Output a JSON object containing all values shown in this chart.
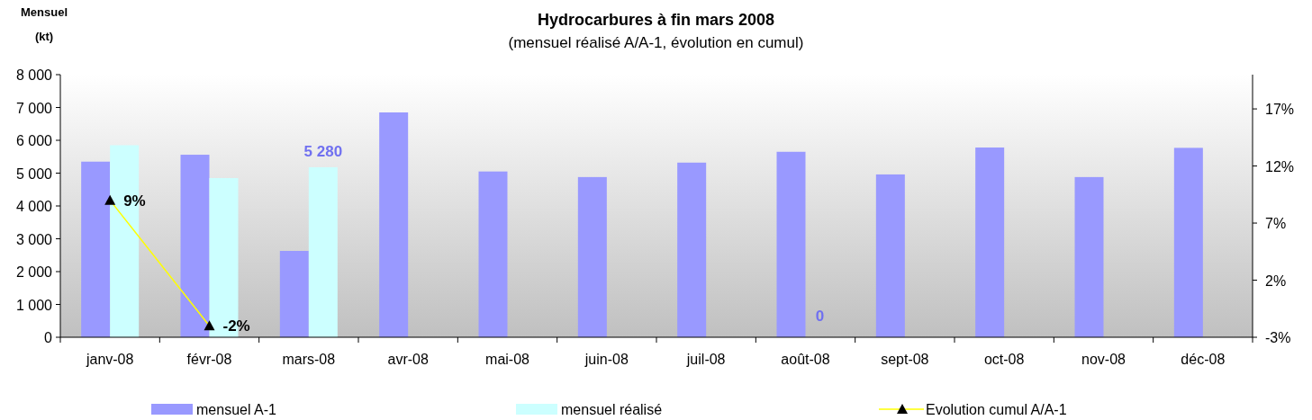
{
  "chart_data": {
    "type": "bar",
    "title": "Hydrocarbures à fin mars 2008",
    "subtitle": "(mensuel réalisé A/A-1, évolution en cumul)",
    "ylabel": "Mensuel (kt)",
    "categories": [
      "janv-08",
      "févr-08",
      "mars-08",
      "avr-08",
      "mai-08",
      "juin-08",
      "juil-08",
      "août-08",
      "sept-08",
      "oct-08",
      "nov-08",
      "déc-08"
    ],
    "series": [
      {
        "name": "mensuel A-1",
        "color": "#9999ff",
        "values": [
          5350,
          5560,
          2630,
          6850,
          5050,
          4880,
          5320,
          5650,
          4960,
          5780,
          4880,
          5770
        ]
      },
      {
        "name": "mensuel réalisé",
        "color": "#ccffff",
        "values": [
          5850,
          4850,
          5180,
          null,
          null,
          null,
          null,
          null,
          null,
          null,
          null,
          null
        ]
      },
      {
        "name": "Evolution cumul A/A-1",
        "type": "line",
        "axis": "y2",
        "color": "#ffff00",
        "marker": "triangle",
        "values": [
          9,
          -2,
          null,
          null,
          null,
          null,
          null,
          null,
          null,
          null,
          null,
          null
        ],
        "value_labels": [
          "9%",
          "-2%",
          null,
          null,
          null,
          null,
          null,
          null,
          null,
          null,
          null,
          null
        ]
      }
    ],
    "ylim": [
      0,
      8000
    ],
    "yticks": [
      {
        "value": 0,
        "label": "0"
      },
      {
        "value": 1000,
        "label": "1 000"
      },
      {
        "value": 2000,
        "label": "2 000"
      },
      {
        "value": 3000,
        "label": "3 000"
      },
      {
        "value": 4000,
        "label": "4 000"
      },
      {
        "value": 5000,
        "label": "5 000"
      },
      {
        "value": 6000,
        "label": "6 000"
      },
      {
        "value": 7000,
        "label": "7 000"
      },
      {
        "value": 8000,
        "label": "8 000"
      }
    ],
    "y2lim": [
      -3,
      20
    ],
    "y2ticks": [
      {
        "value": -3,
        "label": "-3%"
      },
      {
        "value": 2,
        "label": "2%"
      },
      {
        "value": 7,
        "label": "7%"
      },
      {
        "value": 12,
        "label": "12%"
      },
      {
        "value": 17,
        "label": "17%"
      }
    ],
    "annotations": [
      {
        "text": "5 280",
        "x": "mars-08",
        "y": 5280
      },
      {
        "text": "0",
        "x": "août-08",
        "y": 0
      }
    ],
    "grid": false,
    "legend": "bottom"
  }
}
